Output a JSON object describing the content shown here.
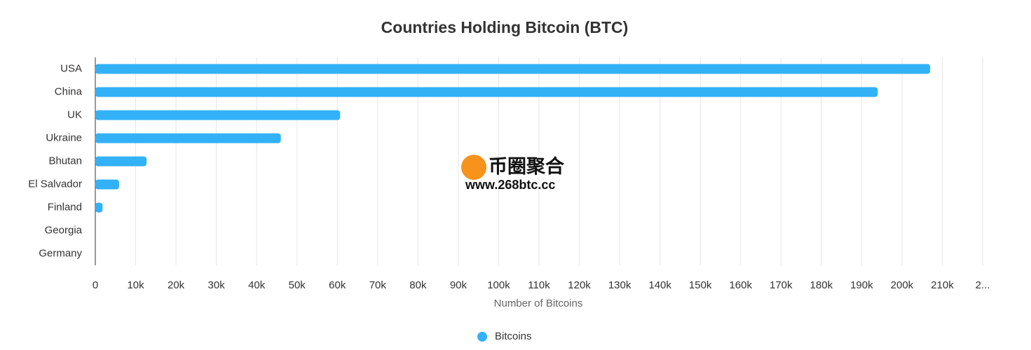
{
  "chart_data": {
    "type": "hbar",
    "title": "Countries Holding Bitcoin (BTC)",
    "categories": [
      "USA",
      "China",
      "UK",
      "Ukraine",
      "Bhutan",
      "El Salvador",
      "Finland",
      "Georgia",
      "Germany"
    ],
    "series": [
      {
        "name": "Bitcoins",
        "color": "#33b1f6",
        "values": [
          207000,
          194000,
          60700,
          46000,
          12700,
          5900,
          1800,
          0,
          0
        ]
      }
    ],
    "xlabel": "Number of Bitcoins",
    "xlim": [
      0,
      220000
    ],
    "xticks": [
      0,
      {
        "value": 10000,
        "label": "10k"
      },
      {
        "value": 20000,
        "label": "20k"
      },
      {
        "value": 30000,
        "label": "30k"
      },
      {
        "value": 40000,
        "label": "40k"
      },
      {
        "value": 50000,
        "label": "50k"
      },
      {
        "value": 60000,
        "label": "60k"
      },
      {
        "value": 70000,
        "label": "70k"
      },
      {
        "value": 80000,
        "label": "80k"
      },
      {
        "value": 90000,
        "label": "90k"
      },
      {
        "value": 100000,
        "label": "100k"
      },
      {
        "value": 110000,
        "label": "110k"
      },
      {
        "value": 120000,
        "label": "120k"
      },
      {
        "value": 130000,
        "label": "130k"
      },
      {
        "value": 140000,
        "label": "140k"
      },
      {
        "value": 150000,
        "label": "150k"
      },
      {
        "value": 160000,
        "label": "160k"
      },
      {
        "value": 170000,
        "label": "170k"
      },
      {
        "value": 180000,
        "label": "180k"
      },
      {
        "value": 190000,
        "label": "190k"
      },
      {
        "value": 200000,
        "label": "200k"
      },
      {
        "value": 210000,
        "label": "210k"
      },
      {
        "value": 220000,
        "label": "2..."
      }
    ],
    "grid": true,
    "legend": "bottom"
  },
  "watermark": {
    "name": "币圈聚合",
    "url": "www.268btc.cc"
  }
}
